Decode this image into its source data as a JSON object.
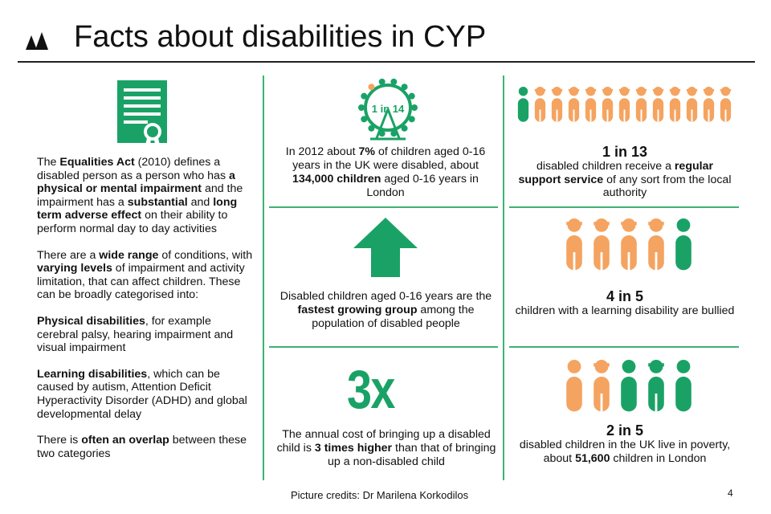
{
  "header": {
    "title": "Facts about disabilities in CYP"
  },
  "left": {
    "p1": [
      {
        "t": "The ",
        "b": false
      },
      {
        "t": "Equalities Act",
        "b": true
      },
      {
        "t": " (2010) defines  a disabled person as a person who has ",
        "b": false
      },
      {
        "t": "a physical or mental impairment",
        "b": true
      },
      {
        "t": " and the impairment has a ",
        "b": false
      },
      {
        "t": "substantial",
        "b": true
      },
      {
        "t": " and ",
        "b": false
      },
      {
        "t": "long term adverse effect",
        "b": true
      },
      {
        "t": " on their ability to perform normal day to day activities",
        "b": false
      }
    ],
    "p2": [
      {
        "t": "There are a ",
        "b": false
      },
      {
        "t": "wide range",
        "b": true
      },
      {
        "t": " of conditions, with ",
        "b": false
      },
      {
        "t": "varying levels",
        "b": true
      },
      {
        "t": " of impairment and activity limitation, that can affect children. These can be broadly categorised into:",
        "b": false
      }
    ],
    "p3": [
      {
        "t": "Physical disabilities",
        "b": true
      },
      {
        "t": ", for example cerebral palsy, hearing impairment and visual impairment",
        "b": false
      }
    ],
    "p4": [
      {
        "t": "Learning disabilities",
        "b": true
      },
      {
        "t": ", which can be caused by autism, Attention Deficit Hyperactivity Disorder (ADHD) and global developmental delay",
        "b": false
      }
    ],
    "p5": [
      {
        "t": "There is ",
        "b": false
      },
      {
        "t": "often an overlap",
        "b": true
      },
      {
        "t": " between these two categories",
        "b": false
      }
    ]
  },
  "middle": {
    "wheel_label": "1 in 14",
    "stat1": [
      {
        "t": "In 2012 about ",
        "b": false
      },
      {
        "t": "7%",
        "b": true
      },
      {
        "t": " of children aged 0-16 years in the UK were disabled, about ",
        "b": false
      },
      {
        "t": "134,000 children",
        "b": true
      },
      {
        "t": " aged 0-16 years in London",
        "b": false
      }
    ],
    "stat2": [
      {
        "t": "Disabled children aged 0-16 years are the ",
        "b": false
      },
      {
        "t": "fastest growing group",
        "b": true
      },
      {
        "t": " among the population of disabled people",
        "b": false
      }
    ],
    "threex": "3x",
    "stat3": [
      {
        "t": "The annual cost of bringing up a disabled child is ",
        "b": false
      },
      {
        "t": "3 times higher",
        "b": true
      },
      {
        "t": " than that of bringing up a non-disabled child",
        "b": false
      }
    ]
  },
  "right": {
    "r1_big": "1 in 13",
    "r1": [
      {
        "t": "disabled children receive a ",
        "b": false
      },
      {
        "t": "regular support service",
        "b": true
      },
      {
        "t": " of any sort from the local authority",
        "b": false
      }
    ],
    "r2_big": "4 in 5",
    "r2": [
      {
        "t": "children with a learning disability are bullied",
        "b": false
      }
    ],
    "r3_big": "2 in 5",
    "r3": [
      {
        "t": "disabled children in the UK live in poverty, about ",
        "b": false
      },
      {
        "t": "51,600",
        "b": true
      },
      {
        "t": " children in London",
        "b": false
      }
    ]
  },
  "footer": {
    "credits": "Picture credits: Dr Marilena Korkodilos",
    "page_number": "4"
  },
  "colors": {
    "green": "#1aa266",
    "orange": "#f4a460",
    "divider": "#3cb371"
  },
  "icons": [
    "logo-icon",
    "certificate-icon",
    "ferris-wheel-icon",
    "up-arrow-icon",
    "person-icon"
  ]
}
